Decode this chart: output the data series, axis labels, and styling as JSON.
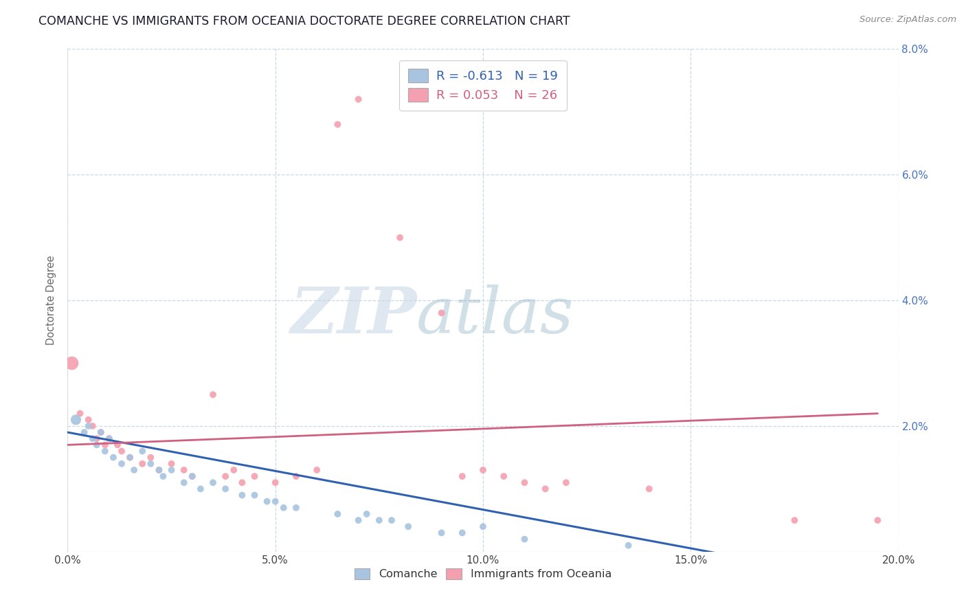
{
  "title": "COMANCHE VS IMMIGRANTS FROM OCEANIA DOCTORATE DEGREE CORRELATION CHART",
  "source": "Source: ZipAtlas.com",
  "ylabel": "Doctorate Degree",
  "xlim": [
    0.0,
    0.2
  ],
  "ylim": [
    0.0,
    0.08
  ],
  "xticks": [
    0.0,
    0.05,
    0.1,
    0.15,
    0.2
  ],
  "yticks": [
    0.0,
    0.02,
    0.04,
    0.06,
    0.08
  ],
  "comanche_R": -0.613,
  "comanche_N": 19,
  "oceania_R": 0.053,
  "oceania_N": 26,
  "comanche_color": "#a8c4e0",
  "oceania_color": "#f4a0b0",
  "comanche_line_color": "#3060b0",
  "oceania_line_color": "#d06080",
  "watermark_zip": "ZIP",
  "watermark_atlas": "atlas",
  "legend_label_comanche": "Comanche",
  "legend_label_oceania": "Immigrants from Oceania",
  "comanche_x": [
    0.002,
    0.004,
    0.005,
    0.006,
    0.007,
    0.008,
    0.009,
    0.01,
    0.011,
    0.013,
    0.015,
    0.016,
    0.018,
    0.02,
    0.022,
    0.023,
    0.025,
    0.028,
    0.03,
    0.032,
    0.035,
    0.038,
    0.042,
    0.045,
    0.048,
    0.05,
    0.052,
    0.055,
    0.065,
    0.07,
    0.072,
    0.075,
    0.078,
    0.082,
    0.09,
    0.095,
    0.1,
    0.11,
    0.135
  ],
  "comanche_y": [
    0.021,
    0.019,
    0.02,
    0.018,
    0.017,
    0.019,
    0.016,
    0.018,
    0.015,
    0.014,
    0.015,
    0.013,
    0.016,
    0.014,
    0.013,
    0.012,
    0.013,
    0.011,
    0.012,
    0.01,
    0.011,
    0.01,
    0.009,
    0.009,
    0.008,
    0.008,
    0.007,
    0.007,
    0.006,
    0.005,
    0.006,
    0.005,
    0.005,
    0.004,
    0.003,
    0.003,
    0.004,
    0.002,
    0.001
  ],
  "comanche_size": [
    120,
    50,
    50,
    50,
    50,
    50,
    50,
    50,
    50,
    50,
    50,
    50,
    50,
    50,
    50,
    50,
    50,
    50,
    50,
    50,
    50,
    50,
    50,
    50,
    50,
    50,
    50,
    50,
    50,
    50,
    50,
    50,
    50,
    50,
    50,
    50,
    50,
    50,
    50
  ],
  "oceania_x": [
    0.001,
    0.003,
    0.005,
    0.006,
    0.007,
    0.008,
    0.009,
    0.01,
    0.012,
    0.013,
    0.015,
    0.018,
    0.02,
    0.022,
    0.025,
    0.028,
    0.03,
    0.035,
    0.038,
    0.04,
    0.042,
    0.045,
    0.05,
    0.055,
    0.06,
    0.065,
    0.07,
    0.08,
    0.09,
    0.095,
    0.1,
    0.105,
    0.11,
    0.115,
    0.12,
    0.14,
    0.175,
    0.195
  ],
  "oceania_y": [
    0.03,
    0.022,
    0.021,
    0.02,
    0.018,
    0.019,
    0.017,
    0.018,
    0.017,
    0.016,
    0.015,
    0.014,
    0.015,
    0.013,
    0.014,
    0.013,
    0.012,
    0.025,
    0.012,
    0.013,
    0.011,
    0.012,
    0.011,
    0.012,
    0.013,
    0.068,
    0.072,
    0.05,
    0.038,
    0.012,
    0.013,
    0.012,
    0.011,
    0.01,
    0.011,
    0.01,
    0.005,
    0.005
  ],
  "oceania_size": [
    200,
    50,
    50,
    50,
    50,
    50,
    50,
    50,
    50,
    50,
    50,
    50,
    50,
    50,
    50,
    50,
    50,
    50,
    50,
    50,
    50,
    50,
    50,
    50,
    50,
    50,
    50,
    50,
    50,
    50,
    50,
    50,
    50,
    50,
    50,
    50,
    50,
    50
  ],
  "background_color": "#ffffff",
  "grid_color": "#c8d8ea",
  "title_color": "#1a1a2e",
  "axis_label_color": "#666666",
  "tick_color_x": "#444444",
  "tick_color_y": "#4472c4"
}
